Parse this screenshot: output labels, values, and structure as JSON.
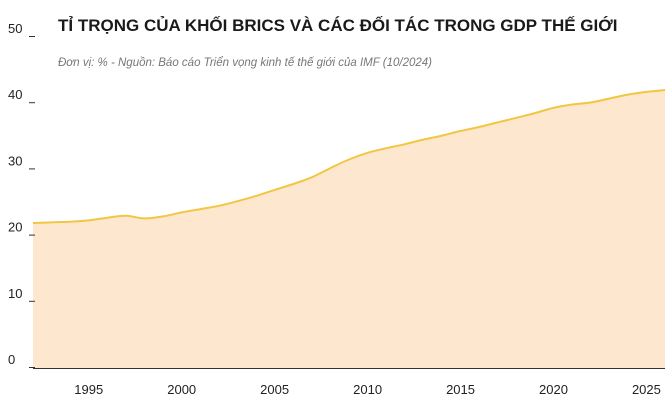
{
  "chart_data": {
    "type": "area",
    "title": "TỈ TRỌNG CỦA KHỐI BRICS VÀ CÁC ĐỐI TÁC TRONG GDP THẾ GIỚI",
    "subtitle": "Đơn vị: %   -   Nguồn: Báo cáo Triển vọng kinh tế thế giới của IMF (10/2024)",
    "xlabel": "",
    "ylabel": "",
    "xlim": [
      1992,
      2026
    ],
    "ylim": [
      0,
      50
    ],
    "x_ticks": [
      "1995",
      "2000",
      "2005",
      "2010",
      "2015",
      "2020",
      "2025"
    ],
    "y_ticks": [
      "0",
      "10",
      "20",
      "30",
      "40",
      "50"
    ],
    "grid": false,
    "legend": "none",
    "colors": {
      "line": "#F2C642",
      "fill": "#FDE8CF",
      "axis": "#333333"
    },
    "series": [
      {
        "x": [
          1992,
          1993,
          1994,
          1995,
          1996,
          1997,
          1998,
          1999,
          2000,
          2001,
          2002,
          2003,
          2004,
          2005,
          2006,
          2007,
          2008,
          2009,
          2010,
          2011,
          2012,
          2013,
          2014,
          2015,
          2016,
          2017,
          2018,
          2019,
          2020,
          2021,
          2022,
          2023,
          2024,
          2025,
          2026
        ],
        "values": [
          21.9,
          22.0,
          22.1,
          22.3,
          22.7,
          23.0,
          22.6,
          22.9,
          23.5,
          24.0,
          24.5,
          25.2,
          26.0,
          26.9,
          27.8,
          28.8,
          30.2,
          31.5,
          32.5,
          33.2,
          33.8,
          34.5,
          35.1,
          35.8,
          36.4,
          37.1,
          37.8,
          38.5,
          39.3,
          39.8,
          40.1,
          40.7,
          41.3,
          41.7,
          42.0
        ]
      }
    ]
  }
}
